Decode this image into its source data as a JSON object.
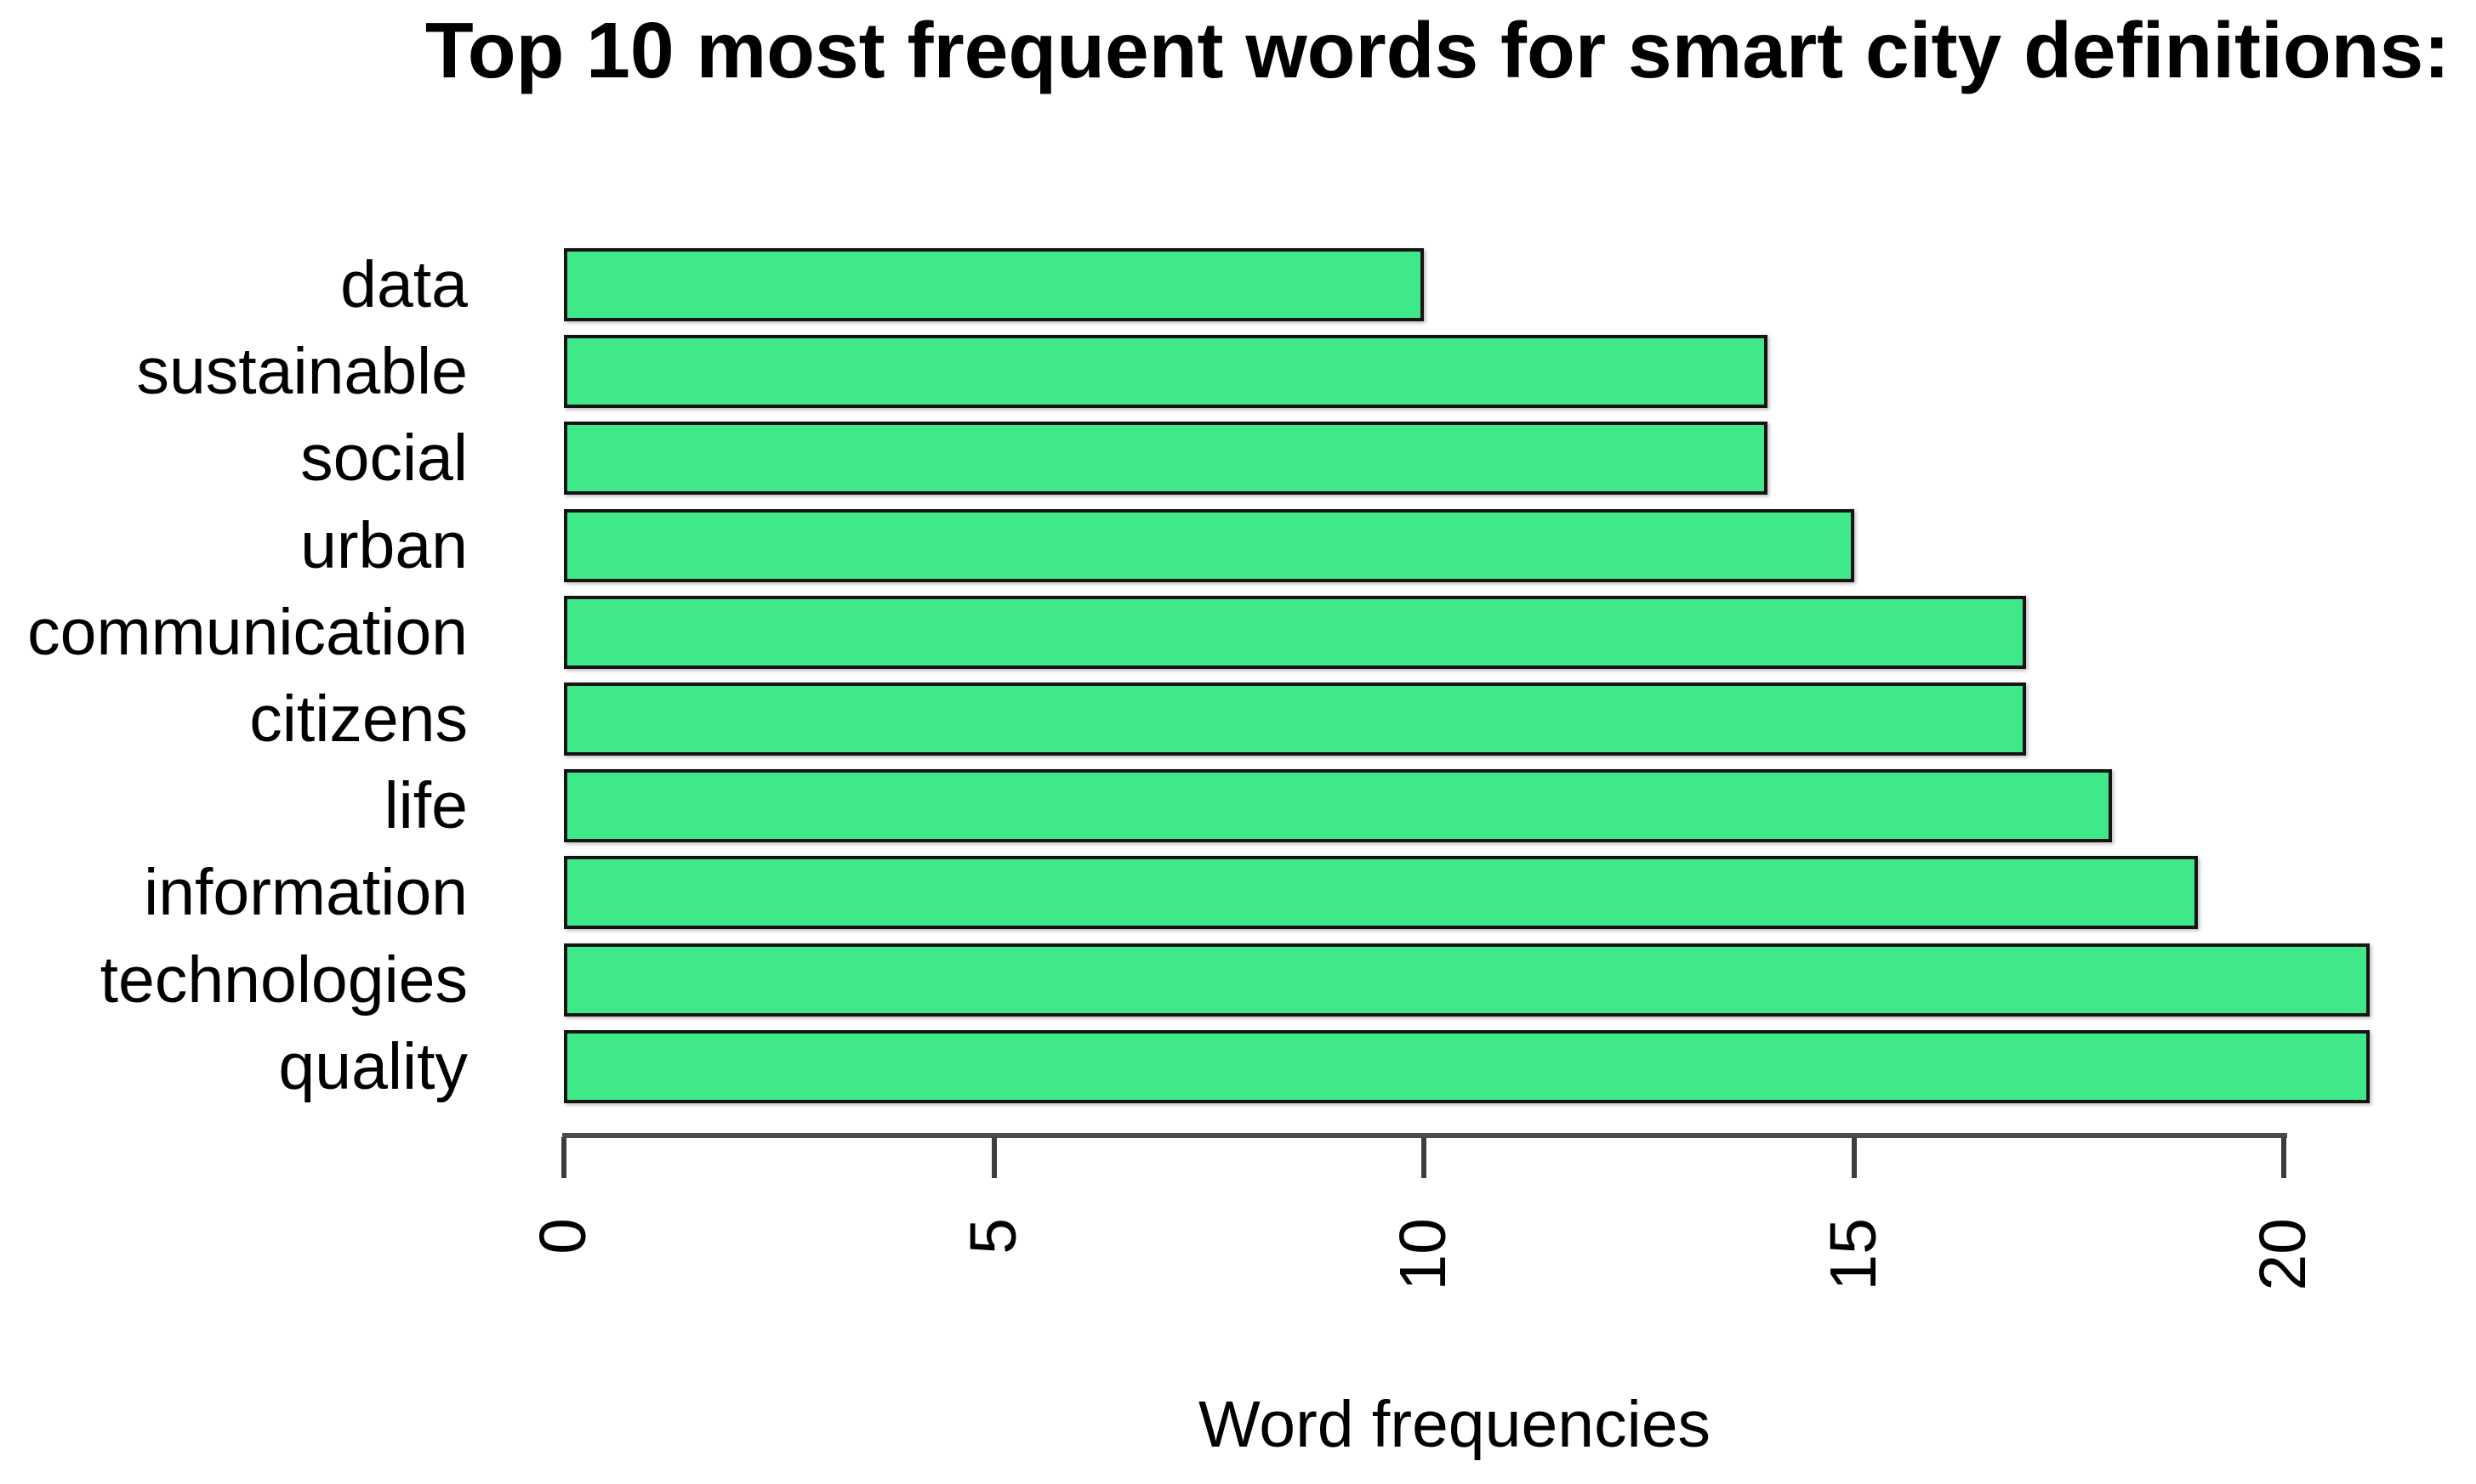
{
  "chart_data": {
    "type": "bar",
    "orientation": "horizontal",
    "title": "Top 10 most frequent words for smart city definitions:",
    "xlabel": "Word frequencies",
    "ylabel": "",
    "categories": [
      "data",
      "sustainable",
      "social",
      "urban",
      "communication",
      "citizens",
      "life",
      "information",
      "technologies",
      "quality"
    ],
    "values": [
      10,
      14,
      14,
      15,
      17,
      17,
      18,
      19,
      21,
      21
    ],
    "xticks": [
      0,
      5,
      10,
      15,
      20
    ],
    "xlim": [
      0,
      21.2
    ],
    "grid": false,
    "legend": null,
    "bar_color": "#3fe98a",
    "bar_border_color": "#141414",
    "axis_color": "#4b4b4b",
    "text_color": "#000000",
    "background_color": "#ffffff"
  }
}
